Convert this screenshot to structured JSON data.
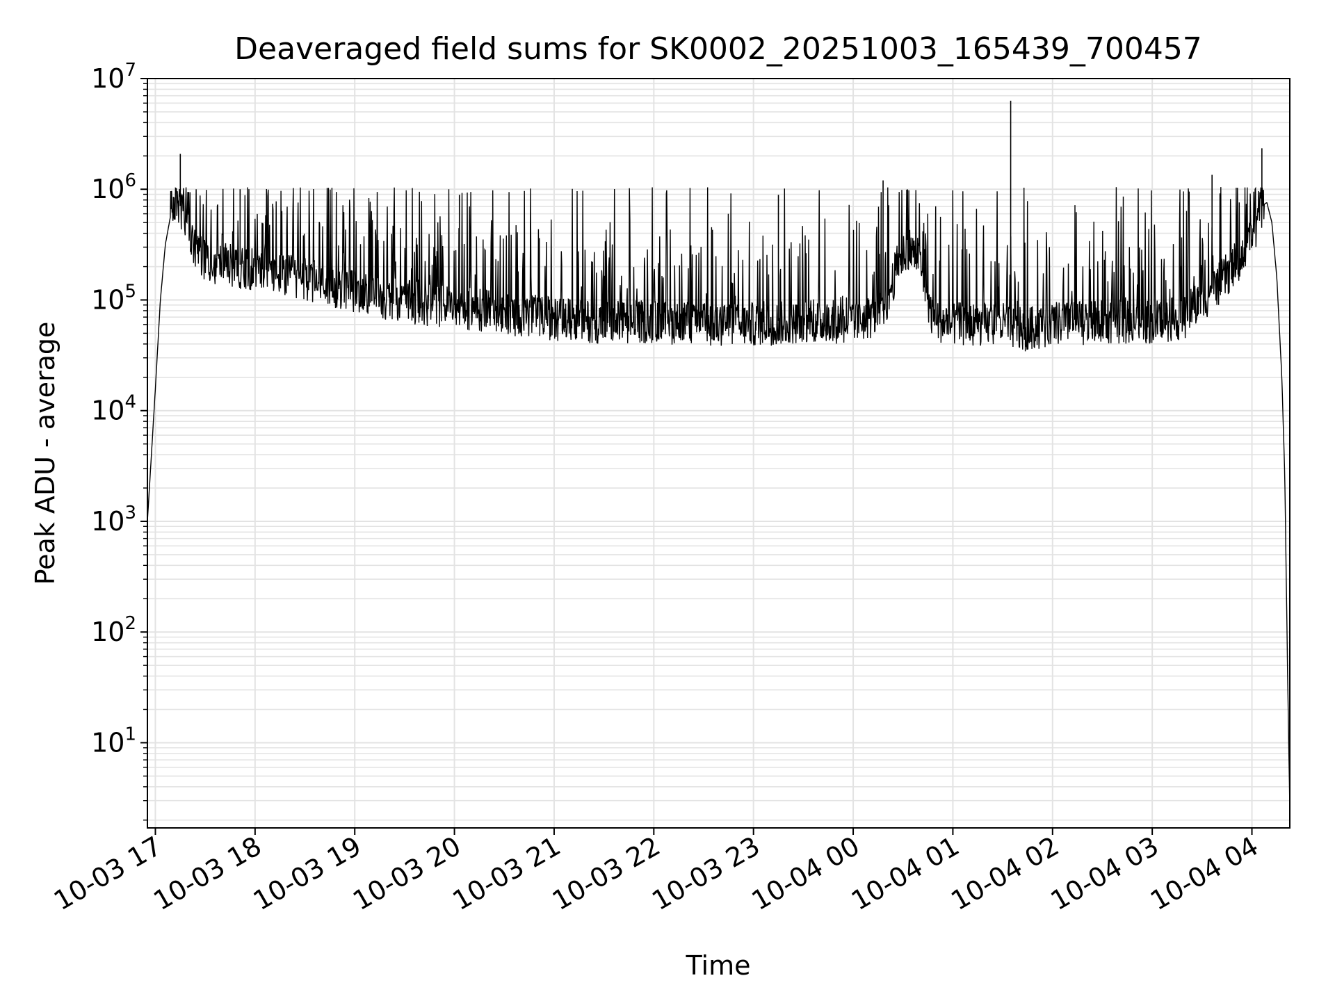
{
  "chart_data": {
    "type": "line",
    "title": "Deaveraged field sums for SK0002_20251003_165439_700457",
    "xlabel": "Time",
    "ylabel": "Peak ADU - average",
    "yscale": "log",
    "ylim": [
      1.7,
      10000000
    ],
    "xlim_hours": [
      16.92,
      28.38
    ],
    "grid": true,
    "legend": "none",
    "colors": {
      "line": "#000000",
      "grid": "#e3e3e3",
      "axes": "#000000"
    },
    "x_ticks": [
      {
        "hour": 17,
        "label": "10-03 17"
      },
      {
        "hour": 18,
        "label": "10-03 18"
      },
      {
        "hour": 19,
        "label": "10-03 19"
      },
      {
        "hour": 20,
        "label": "10-03 20"
      },
      {
        "hour": 21,
        "label": "10-03 21"
      },
      {
        "hour": 22,
        "label": "10-03 22"
      },
      {
        "hour": 23,
        "label": "10-03 23"
      },
      {
        "hour": 24,
        "label": "10-04 00"
      },
      {
        "hour": 25,
        "label": "10-04 01"
      },
      {
        "hour": 26,
        "label": "10-04 02"
      },
      {
        "hour": 27,
        "label": "10-04 03"
      },
      {
        "hour": 28,
        "label": "10-04 04"
      }
    ],
    "y_ticks": [
      {
        "exp": 1,
        "base": "10",
        "sup": "1"
      },
      {
        "exp": 2,
        "base": "10",
        "sup": "2"
      },
      {
        "exp": 3,
        "base": "10",
        "sup": "3"
      },
      {
        "exp": 4,
        "base": "10",
        "sup": "4"
      },
      {
        "exp": 5,
        "base": "10",
        "sup": "5"
      },
      {
        "exp": 6,
        "base": "10",
        "sup": "6"
      },
      {
        "exp": 7,
        "base": "10",
        "sup": "7"
      }
    ],
    "series": [
      {
        "name": "Peak ADU - average",
        "envelope_hours": [
          16.92,
          17.0,
          17.05,
          17.1,
          17.18,
          17.25,
          17.4,
          17.6,
          18.0,
          18.5,
          19.0,
          19.5,
          20.0,
          20.5,
          21.0,
          21.5,
          22.0,
          22.5,
          23.0,
          23.5,
          24.0,
          24.3,
          24.45,
          24.55,
          24.65,
          24.8,
          25.0,
          25.3,
          25.5,
          25.7,
          26.0,
          26.5,
          27.0,
          27.3,
          27.6,
          27.8,
          28.0,
          28.1,
          28.15,
          28.2,
          28.25,
          28.3,
          28.33,
          28.36,
          28.38
        ],
        "envelope_log10_base": [
          3.0,
          4.2,
          5.0,
          5.5,
          5.9,
          5.85,
          5.45,
          5.35,
          5.3,
          5.2,
          5.1,
          5.0,
          4.95,
          4.9,
          4.85,
          4.82,
          4.82,
          4.8,
          4.8,
          4.82,
          4.82,
          4.9,
          5.35,
          5.5,
          5.4,
          4.85,
          4.8,
          4.8,
          4.8,
          4.75,
          4.8,
          4.82,
          4.82,
          4.85,
          5.1,
          5.3,
          5.55,
          5.85,
          5.88,
          5.7,
          5.2,
          4.3,
          3.4,
          1.5,
          0.4
        ],
        "noise_log10_below": 0.2,
        "spikes_log10": [
          {
            "hour": 17.25,
            "value": 6.32
          },
          {
            "hour": 17.85,
            "value": 6.0
          },
          {
            "hour": 20.05,
            "value": 5.95
          },
          {
            "hour": 23.25,
            "value": 5.95
          },
          {
            "hour": 24.3,
            "value": 6.08
          },
          {
            "hour": 25.58,
            "value": 6.8
          },
          {
            "hour": 27.6,
            "value": 6.13
          },
          {
            "hour": 28.1,
            "value": 6.37
          }
        ]
      }
    ]
  }
}
